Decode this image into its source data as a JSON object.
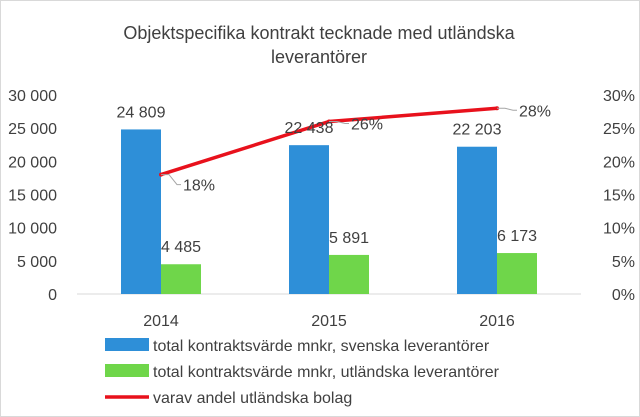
{
  "chart_data": {
    "type": "bar",
    "title_lines": [
      "Objektspecifika kontrakt tecknade med utländska",
      "leverantörer"
    ],
    "categories": [
      "2014",
      "2015",
      "2016"
    ],
    "series": [
      {
        "name": "total kontraktsvärde mnkr, svenska leverantörer",
        "type": "bar",
        "axis": "left",
        "color": "#2e8fd8",
        "values": [
          24809,
          22438,
          22203
        ],
        "labels": [
          "24 809",
          "22 438",
          "22 203"
        ]
      },
      {
        "name": "total kontraktsvärde mnkr, utländska leverantörer",
        "type": "bar",
        "axis": "left",
        "color": "#6fd64a",
        "values": [
          4485,
          5891,
          6173
        ],
        "labels": [
          "4 485",
          "5 891",
          "6 173"
        ]
      },
      {
        "name": "varav andel utländska bolag",
        "type": "line",
        "axis": "right",
        "color": "#e8111c",
        "values": [
          18,
          26,
          28
        ],
        "labels": [
          "18%",
          "26%",
          "28%"
        ]
      }
    ],
    "y_left": {
      "ylim": [
        0,
        30000
      ],
      "ticks": [
        0,
        5000,
        10000,
        15000,
        20000,
        25000,
        30000
      ],
      "tick_labels": [
        "0",
        "5 000",
        "10 000",
        "15 000",
        "20 000",
        "25 000",
        "30 000"
      ]
    },
    "y_right": {
      "ylim": [
        0,
        30
      ],
      "ticks": [
        0,
        5,
        10,
        15,
        20,
        25,
        30
      ],
      "tick_labels": [
        "0%",
        "5%",
        "10%",
        "15%",
        "20%",
        "25%",
        "30%"
      ]
    },
    "grid": false,
    "legend_position": "bottom"
  }
}
